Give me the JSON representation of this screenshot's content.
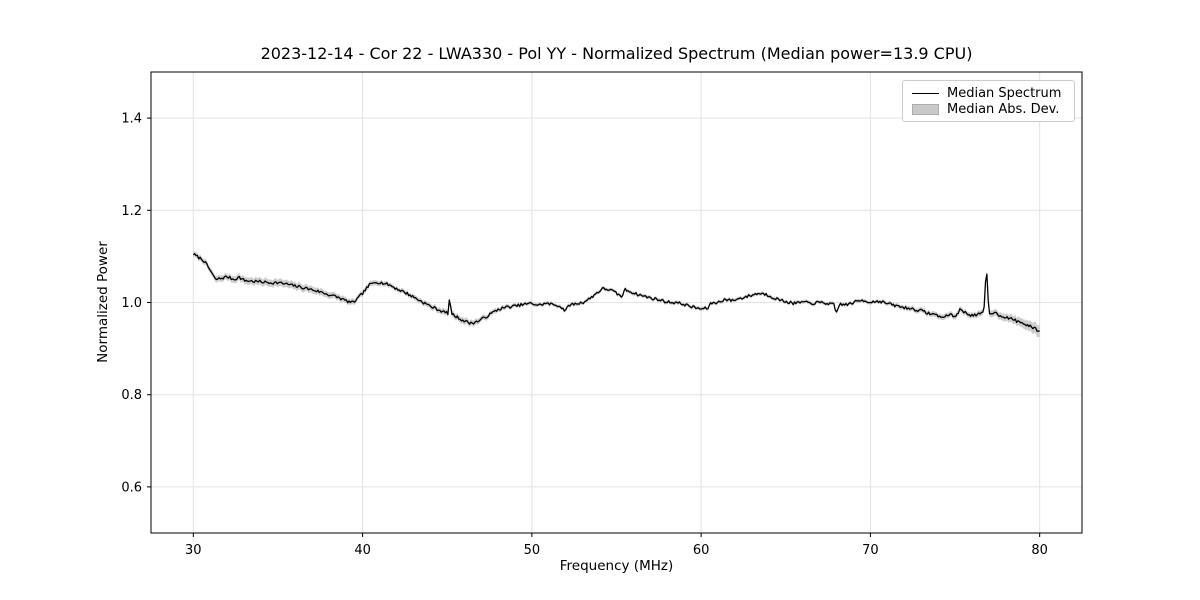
{
  "chart_data": {
    "type": "line",
    "title": "2023-12-14 - Cor 22 - LWA330 - Pol YY - Normalized Spectrum (Median power=13.9 CPU)",
    "xlabel": "Frequency (MHz)",
    "ylabel": "Normalized Power",
    "xlim": [
      27.5,
      82.5
    ],
    "ylim": [
      0.5,
      1.5
    ],
    "xticks": [
      {
        "v": 30,
        "label": "30"
      },
      {
        "v": 40,
        "label": "40"
      },
      {
        "v": 50,
        "label": "50"
      },
      {
        "v": 60,
        "label": "60"
      },
      {
        "v": 70,
        "label": "70"
      },
      {
        "v": 80,
        "label": "80"
      }
    ],
    "yticks": [
      {
        "v": 0.6,
        "label": "0.6"
      },
      {
        "v": 0.8,
        "label": "0.8"
      },
      {
        "v": 1.0,
        "label": "1.0"
      },
      {
        "v": 1.2,
        "label": "1.2"
      },
      {
        "v": 1.4,
        "label": "1.4"
      }
    ],
    "grid": true,
    "grid_color": "#e3e3e3",
    "legend": {
      "position": "upper right",
      "entries": [
        {
          "label": "Median Spectrum",
          "type": "line",
          "color": "#000000"
        },
        {
          "label": "Median Abs. Dev.",
          "type": "patch",
          "color": "#c9c9c9"
        }
      ]
    },
    "series": [
      {
        "name": "Median Spectrum",
        "color": "#000000",
        "points": [
          [
            30.0,
            1.105
          ],
          [
            30.3,
            1.098
          ],
          [
            30.6,
            1.092
          ],
          [
            31.0,
            1.07
          ],
          [
            31.3,
            1.05
          ],
          [
            31.6,
            1.052
          ],
          [
            32.0,
            1.056
          ],
          [
            32.4,
            1.05
          ],
          [
            32.7,
            1.055
          ],
          [
            33.0,
            1.048
          ],
          [
            33.5,
            1.046
          ],
          [
            34.0,
            1.045
          ],
          [
            34.5,
            1.043
          ],
          [
            35.0,
            1.043
          ],
          [
            35.5,
            1.04
          ],
          [
            36.0,
            1.036
          ],
          [
            36.5,
            1.032
          ],
          [
            37.0,
            1.028
          ],
          [
            37.5,
            1.023
          ],
          [
            38.0,
            1.017
          ],
          [
            38.5,
            1.012
          ],
          [
            39.0,
            1.004
          ],
          [
            39.4,
            0.999
          ],
          [
            39.7,
            1.008
          ],
          [
            40.0,
            1.02
          ],
          [
            40.4,
            1.038
          ],
          [
            40.8,
            1.045
          ],
          [
            41.2,
            1.042
          ],
          [
            41.6,
            1.038
          ],
          [
            42.0,
            1.03
          ],
          [
            42.5,
            1.022
          ],
          [
            43.0,
            1.012
          ],
          [
            43.5,
            1.002
          ],
          [
            44.0,
            0.992
          ],
          [
            44.5,
            0.984
          ],
          [
            44.9,
            0.978
          ],
          [
            45.05,
            0.977
          ],
          [
            45.15,
            1.013
          ],
          [
            45.25,
            0.975
          ],
          [
            45.6,
            0.968
          ],
          [
            46.0,
            0.96
          ],
          [
            46.4,
            0.955
          ],
          [
            46.8,
            0.959
          ],
          [
            47.2,
            0.967
          ],
          [
            47.6,
            0.976
          ],
          [
            48.0,
            0.985
          ],
          [
            48.5,
            0.99
          ],
          [
            49.0,
            0.992
          ],
          [
            49.5,
            0.996
          ],
          [
            50.0,
            0.998
          ],
          [
            50.4,
            0.994
          ],
          [
            50.8,
            0.998
          ],
          [
            51.2,
            0.996
          ],
          [
            51.6,
            0.993
          ],
          [
            52.0,
            0.982
          ],
          [
            52.2,
            0.995
          ],
          [
            52.6,
            0.997
          ],
          [
            53.0,
            1.0
          ],
          [
            53.4,
            1.008
          ],
          [
            53.8,
            1.02
          ],
          [
            54.2,
            1.03
          ],
          [
            54.6,
            1.028
          ],
          [
            55.0,
            1.02
          ],
          [
            55.3,
            1.012
          ],
          [
            55.5,
            1.028
          ],
          [
            55.8,
            1.024
          ],
          [
            56.2,
            1.018
          ],
          [
            56.6,
            1.014
          ],
          [
            57.0,
            1.01
          ],
          [
            57.5,
            1.006
          ],
          [
            58.0,
            1.001
          ],
          [
            58.5,
            1.0
          ],
          [
            59.0,
            0.996
          ],
          [
            59.5,
            0.99
          ],
          [
            60.0,
            0.986
          ],
          [
            60.4,
            0.988
          ],
          [
            60.6,
            0.999
          ],
          [
            61.0,
            1.0
          ],
          [
            61.4,
            1.007
          ],
          [
            61.8,
            1.004
          ],
          [
            62.2,
            1.008
          ],
          [
            62.6,
            1.012
          ],
          [
            63.0,
            1.016
          ],
          [
            63.4,
            1.02
          ],
          [
            63.8,
            1.018
          ],
          [
            64.2,
            1.012
          ],
          [
            64.6,
            1.006
          ],
          [
            65.0,
            1.002
          ],
          [
            65.5,
            0.998
          ],
          [
            66.0,
            1.001
          ],
          [
            66.5,
            0.998
          ],
          [
            67.0,
            1.0
          ],
          [
            67.5,
            0.998
          ],
          [
            67.85,
            0.995
          ],
          [
            67.95,
            0.975
          ],
          [
            68.2,
            0.997
          ],
          [
            68.6,
            0.995
          ],
          [
            69.0,
            1.0
          ],
          [
            69.5,
            1.005
          ],
          [
            70.0,
            1.001
          ],
          [
            70.5,
            1.003
          ],
          [
            71.0,
            0.998
          ],
          [
            71.5,
            0.993
          ],
          [
            72.0,
            0.989
          ],
          [
            72.5,
            0.986
          ],
          [
            73.0,
            0.982
          ],
          [
            73.5,
            0.976
          ],
          [
            74.0,
            0.972
          ],
          [
            74.3,
            0.966
          ],
          [
            74.6,
            0.975
          ],
          [
            75.0,
            0.969
          ],
          [
            75.3,
            0.985
          ],
          [
            75.6,
            0.978
          ],
          [
            76.0,
            0.972
          ],
          [
            76.4,
            0.974
          ],
          [
            76.7,
            0.977
          ],
          [
            76.85,
            1.08
          ],
          [
            77.0,
            0.976
          ],
          [
            77.3,
            0.979
          ],
          [
            77.6,
            0.973
          ],
          [
            78.0,
            0.968
          ],
          [
            78.5,
            0.962
          ],
          [
            79.0,
            0.955
          ],
          [
            79.5,
            0.947
          ],
          [
            80.0,
            0.938
          ]
        ]
      },
      {
        "name": "Median Abs. Dev.",
        "color": "#c9c9c9",
        "band_halfwidth_points": [
          [
            30,
            0.006
          ],
          [
            32,
            0.007
          ],
          [
            34,
            0.008
          ],
          [
            36,
            0.008
          ],
          [
            38,
            0.007
          ],
          [
            40,
            0.006
          ],
          [
            42,
            0.005
          ],
          [
            44,
            0.006
          ],
          [
            46,
            0.007
          ],
          [
            48,
            0.005
          ],
          [
            50,
            0.004
          ],
          [
            54,
            0.004
          ],
          [
            58,
            0.004
          ],
          [
            62,
            0.004
          ],
          [
            66,
            0.004
          ],
          [
            70,
            0.004
          ],
          [
            72,
            0.005
          ],
          [
            74,
            0.006
          ],
          [
            76,
            0.006
          ],
          [
            77,
            0.007
          ],
          [
            78,
            0.008
          ],
          [
            79,
            0.01
          ],
          [
            80,
            0.013
          ]
        ]
      }
    ],
    "noise": {
      "amplitude": 0.0032,
      "seed": 7,
      "step_mhz": 0.08
    }
  },
  "style": {
    "line_color": "#000000",
    "band_color": "#c9c9c9",
    "spine_color": "#000000",
    "tick_color": "#000000",
    "background": "#ffffff"
  }
}
